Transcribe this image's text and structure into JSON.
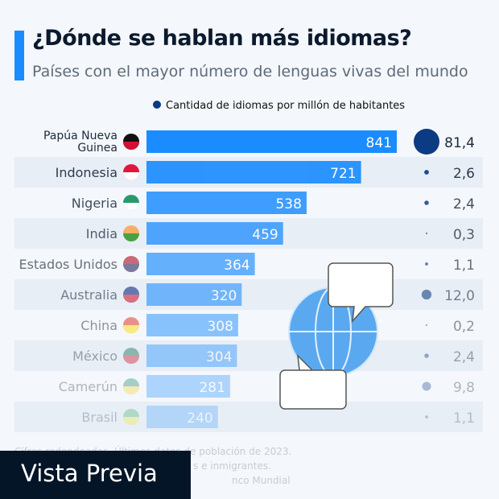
{
  "header": {
    "title": "¿Dónde se hablan más idiomas?",
    "subtitle": "Países con el mayor número de lenguas vivas del mundo"
  },
  "colors": {
    "bar": "#1a8cff",
    "bubble": "#0b3b82",
    "band": "#e8eef6"
  },
  "chart_data": {
    "type": "bar",
    "orientation": "horizontal",
    "categories": [
      "Papúa Nueva Guinea",
      "Indonesia",
      "Nigeria",
      "India",
      "Estados Unidos",
      "Australia",
      "China",
      "México",
      "Camerún",
      "Brasil"
    ],
    "values": [
      841,
      721,
      538,
      459,
      364,
      320,
      308,
      304,
      281,
      240
    ],
    "series2": {
      "name": "Cantidad de idiomas por millón de habitantes",
      "type": "bubble",
      "values": [
        "81,4",
        "2,6",
        "2,4",
        "0,3",
        "1,1",
        "12,0",
        "0,2",
        "2,4",
        "9,8",
        "1,1"
      ]
    },
    "legend": "top"
  },
  "footer": {
    "lines": [
      "Cifras redondeadas. Últimos datos de población de 2023.",
      "s e inmigrantes.",
      "nco Mundial"
    ]
  },
  "overlay": {
    "label": "Vista Previa"
  }
}
